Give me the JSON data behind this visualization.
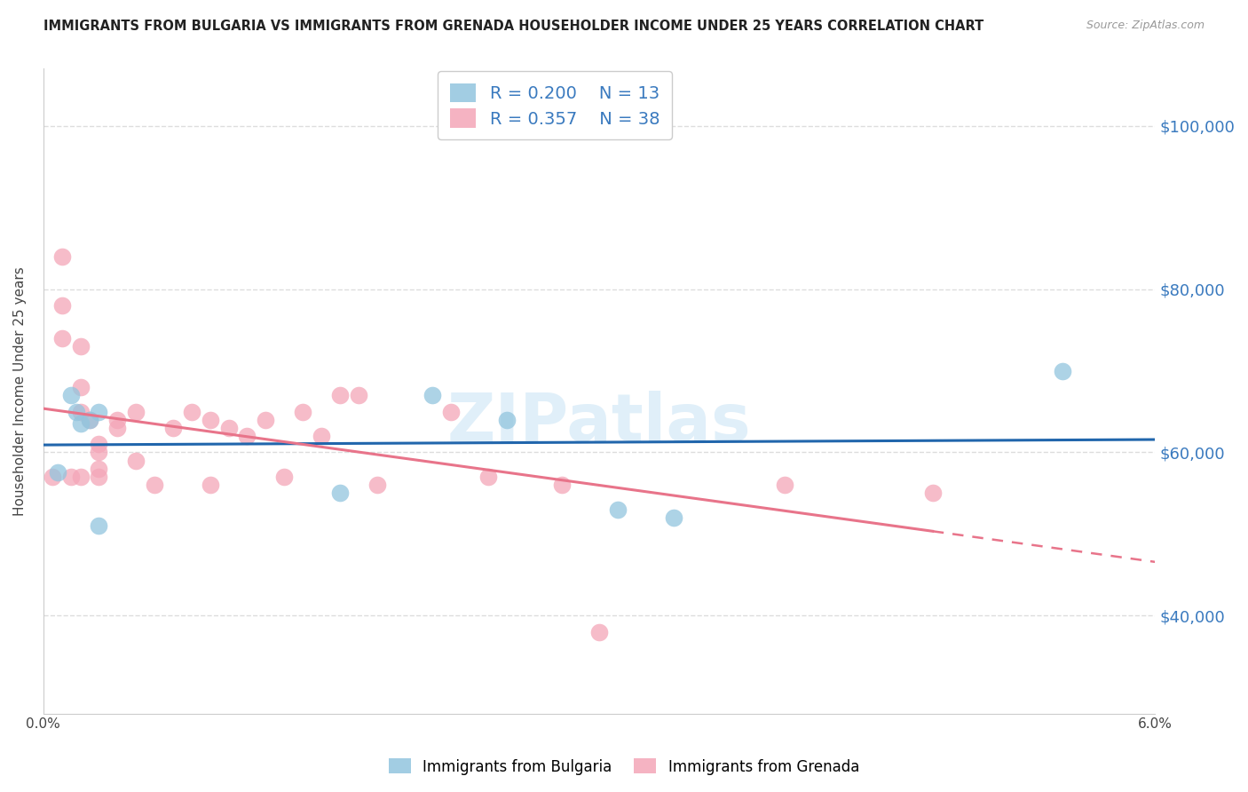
{
  "title": "IMMIGRANTS FROM BULGARIA VS IMMIGRANTS FROM GRENADA HOUSEHOLDER INCOME UNDER 25 YEARS CORRELATION CHART",
  "source": "Source: ZipAtlas.com",
  "ylabel": "Householder Income Under 25 years",
  "xmin": 0.0,
  "xmax": 0.06,
  "ymin": 28000,
  "ymax": 107000,
  "yticks": [
    40000,
    60000,
    80000,
    100000
  ],
  "ytick_labels": [
    "$40,000",
    "$60,000",
    "$80,000",
    "$100,000"
  ],
  "xticks": [
    0.0,
    0.01,
    0.02,
    0.03,
    0.04,
    0.05,
    0.06
  ],
  "xtick_labels": [
    "0.0%",
    "",
    "",
    "",
    "",
    "",
    "6.0%"
  ],
  "bulgaria_color": "#92c5de",
  "grenada_color": "#f4a6b8",
  "bulgaria_line_color": "#2166ac",
  "grenada_line_color": "#e8748a",
  "bulgaria_R": 0.2,
  "bulgaria_N": 13,
  "grenada_R": 0.357,
  "grenada_N": 38,
  "bulgaria_x": [
    0.0008,
    0.0015,
    0.0018,
    0.002,
    0.0025,
    0.003,
    0.003,
    0.016,
    0.021,
    0.025,
    0.031,
    0.034,
    0.055
  ],
  "bulgaria_y": [
    57500,
    67000,
    65000,
    63500,
    64000,
    65000,
    51000,
    55000,
    67000,
    64000,
    53000,
    52000,
    70000
  ],
  "grenada_x": [
    0.0005,
    0.001,
    0.001,
    0.001,
    0.0015,
    0.002,
    0.002,
    0.002,
    0.002,
    0.0025,
    0.003,
    0.003,
    0.003,
    0.003,
    0.004,
    0.004,
    0.005,
    0.005,
    0.006,
    0.007,
    0.008,
    0.009,
    0.009,
    0.01,
    0.011,
    0.012,
    0.013,
    0.014,
    0.015,
    0.016,
    0.017,
    0.018,
    0.022,
    0.024,
    0.028,
    0.03,
    0.04,
    0.048
  ],
  "grenada_y": [
    57000,
    84000,
    78000,
    74000,
    57000,
    73000,
    68000,
    65000,
    57000,
    64000,
    61000,
    60000,
    58000,
    57000,
    64000,
    63000,
    65000,
    59000,
    56000,
    63000,
    65000,
    64000,
    56000,
    63000,
    62000,
    64000,
    57000,
    65000,
    62000,
    67000,
    67000,
    56000,
    65000,
    57000,
    56000,
    38000,
    56000,
    55000
  ],
  "background_color": "#ffffff",
  "grid_color": "#dddddd",
  "title_color": "#222222",
  "right_label_color": "#3a7abf",
  "watermark": "ZIPatlas",
  "legend_label_color": "#3a7abf"
}
